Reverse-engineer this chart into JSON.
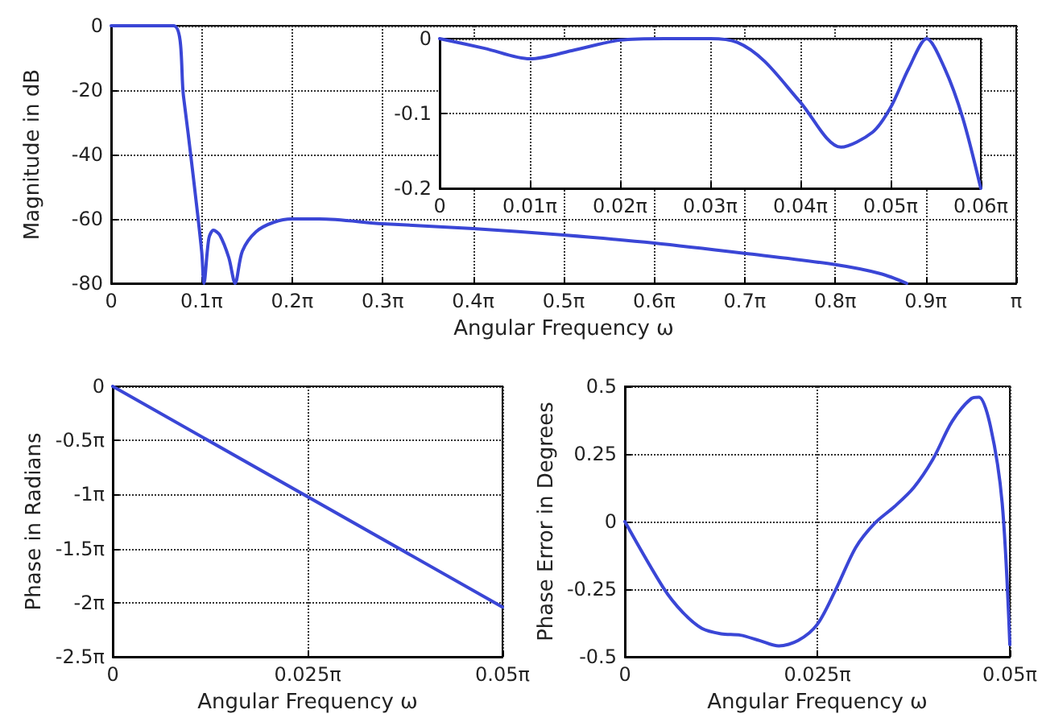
{
  "chart_data": [
    {
      "type": "line",
      "xlabel": "Angular Frequency ω",
      "ylabel": "Magnitude in dB",
      "xlim": [
        0,
        3.14159
      ],
      "ylim": [
        -80,
        0
      ],
      "xticks": [
        {
          "value": 0,
          "label": "0"
        },
        {
          "value": 0.31416,
          "label": "0.1π"
        },
        {
          "value": 0.62832,
          "label": "0.2π"
        },
        {
          "value": 0.94248,
          "label": "0.3π"
        },
        {
          "value": 1.25664,
          "label": "0.4π"
        },
        {
          "value": 1.5708,
          "label": "0.5π"
        },
        {
          "value": 1.88496,
          "label": "0.6π"
        },
        {
          "value": 2.19911,
          "label": "0.7π"
        },
        {
          "value": 2.51327,
          "label": "0.8π"
        },
        {
          "value": 2.82743,
          "label": "0.9π"
        },
        {
          "value": 3.14159,
          "label": "π"
        }
      ],
      "yticks": [
        -80,
        -60,
        -40,
        -20,
        0
      ],
      "grid": true,
      "marker": "none",
      "line_style": "solid",
      "series": [
        {
          "color": "#3a46d6",
          "x": [
            0,
            0.2168,
            0.2513,
            0.2827,
            0.3142,
            0.3223,
            0.3393,
            0.355,
            0.377,
            0.4084,
            0.4304,
            0.4555,
            0.5027,
            0.5655,
            0.6283,
            0.7226,
            0.9425,
            1.2566,
            1.5708,
            1.885,
            2.1991,
            2.5133,
            2.6704,
            2.7615
          ],
          "values": [
            0,
            0,
            -22,
            -45,
            -70,
            -80,
            -66,
            -63.5,
            -65,
            -72,
            -80,
            -70,
            -64,
            -61,
            -60,
            -60,
            -61.5,
            -63,
            -65,
            -67.5,
            -70.7,
            -74.2,
            -77,
            -80
          ]
        }
      ]
    },
    {
      "type": "line",
      "xlim": [
        0,
        0.188496
      ],
      "ylim": [
        -0.2,
        0
      ],
      "xticks": [
        {
          "value": 0,
          "label": "0"
        },
        {
          "value": 0.031416,
          "label": "0.01π"
        },
        {
          "value": 0.062832,
          "label": "0.02π"
        },
        {
          "value": 0.094248,
          "label": "0.03π"
        },
        {
          "value": 0.125664,
          "label": "0.04π"
        },
        {
          "value": 0.15708,
          "label": "0.05π"
        },
        {
          "value": 0.188496,
          "label": "0.06π"
        }
      ],
      "yticks": [
        -0.2,
        -0.1,
        0
      ],
      "grid": true,
      "marker": "none",
      "line_style": "solid",
      "series": [
        {
          "color": "#3a46d6",
          "x": [
            0,
            0.01571,
            0.03142,
            0.04712,
            0.06283,
            0.07854,
            0.09425,
            0.10367,
            0.1131,
            0.12566,
            0.1398,
            0.1508,
            0.15708,
            0.16336,
            0.16965,
            0.17593,
            0.18221,
            0.188496
          ],
          "values": [
            0,
            -0.013,
            -0.027,
            -0.015,
            -0.002,
            0,
            0,
            -0.005,
            -0.03,
            -0.085,
            -0.145,
            -0.125,
            -0.092,
            -0.04,
            0,
            -0.04,
            -0.106,
            -0.2
          ]
        }
      ]
    },
    {
      "type": "line",
      "xlabel": "Angular Frequency ω",
      "ylabel": "Phase in Radians",
      "xlim": [
        0,
        0.15708
      ],
      "ylim": [
        -7.85398,
        0
      ],
      "xticks": [
        {
          "value": 0,
          "label": "0"
        },
        {
          "value": 0.07854,
          "label": "0.025π"
        },
        {
          "value": 0.15708,
          "label": "0.05π"
        }
      ],
      "yticks": [
        {
          "value": -7.85398,
          "label": "-2.5π"
        },
        {
          "value": -6.28319,
          "label": "-2π"
        },
        {
          "value": -4.71239,
          "label": "-1.5π"
        },
        {
          "value": -3.14159,
          "label": "-1π"
        },
        {
          "value": -1.5708,
          "label": "-0.5π"
        },
        0
      ],
      "grid": true,
      "marker": "none",
      "line_style": "solid",
      "series": [
        {
          "color": "#3a46d6",
          "x": [
            0,
            0.15708
          ],
          "values": [
            0,
            -6.41
          ]
        }
      ]
    },
    {
      "type": "line",
      "xlabel": "Angular Frequency ω",
      "ylabel": "Phase Error in Degrees",
      "xlim": [
        0,
        0.15708
      ],
      "ylim": [
        -0.5,
        0.5
      ],
      "xticks": [
        {
          "value": 0,
          "label": "0"
        },
        {
          "value": 0.07854,
          "label": "0.025π"
        },
        {
          "value": 0.15708,
          "label": "0.05π"
        }
      ],
      "yticks": [
        -0.5,
        -0.25,
        0,
        0.25,
        0.5
      ],
      "grid": true,
      "marker": "none",
      "line_style": "solid",
      "series": [
        {
          "color": "#3a46d6",
          "x": [
            0,
            0.01571,
            0.02356,
            0.03142,
            0.03927,
            0.04712,
            0.05498,
            0.06283,
            0.07069,
            0.07854,
            0.08639,
            0.09425,
            0.1021,
            0.10996,
            0.11781,
            0.12566,
            0.13352,
            0.14137,
            0.14451,
            0.14923,
            0.15394,
            0.15708
          ],
          "values": [
            0,
            -0.245,
            -0.335,
            -0.395,
            -0.415,
            -0.42,
            -0.44,
            -0.46,
            -0.44,
            -0.38,
            -0.245,
            -0.095,
            -0.005,
            0.055,
            0.125,
            0.23,
            0.37,
            0.455,
            0.46,
            0.35,
            0.07,
            -0.455
          ]
        }
      ]
    }
  ]
}
